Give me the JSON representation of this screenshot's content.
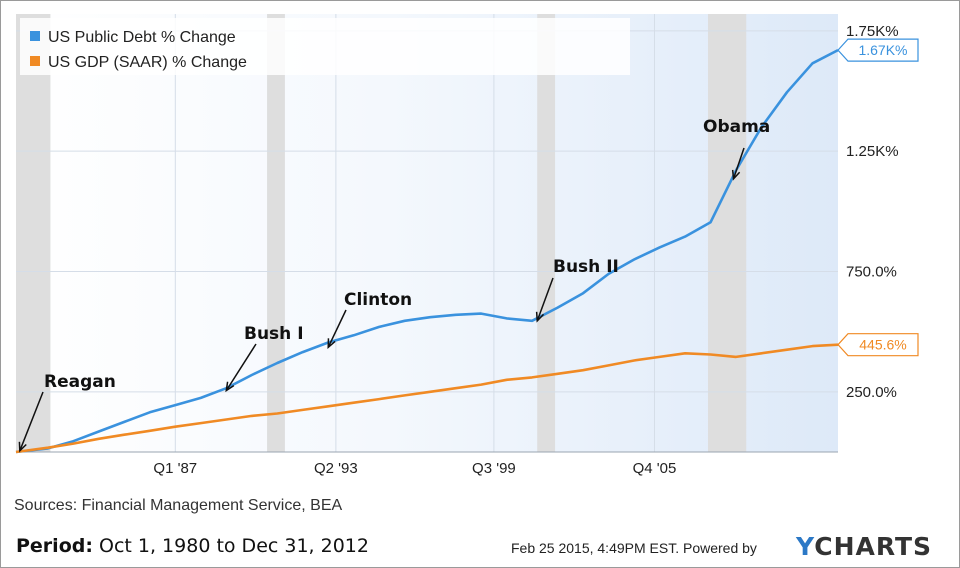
{
  "chart_data": {
    "type": "line",
    "x_labels": [
      "Q1 '87",
      "Q2 '93",
      "Q3 '99",
      "Q4 '05"
    ],
    "y_ticks": [
      "250.0%",
      "750.0%",
      "1.25K%",
      "1.75K%"
    ],
    "y_tick_values": [
      250,
      750,
      1250,
      1750
    ],
    "ylim": [
      0,
      1820
    ],
    "xlim": [
      1980.75,
      2013.0
    ],
    "x_tick_values": [
      1987.0,
      1993.3,
      1999.5,
      2005.8
    ],
    "recessions": [
      [
        1980.75,
        1982.1
      ],
      [
        1990.6,
        1991.3
      ],
      [
        2001.2,
        2001.9
      ],
      [
        2007.9,
        2009.4
      ]
    ],
    "series": [
      {
        "name": "US Public Debt % Change",
        "color": "#3a92de",
        "end_label": "1.67K%",
        "points": [
          [
            1980.75,
            0
          ],
          [
            1982,
            15
          ],
          [
            1983,
            45
          ],
          [
            1984,
            85
          ],
          [
            1985,
            125
          ],
          [
            1986,
            165
          ],
          [
            1987,
            195
          ],
          [
            1988,
            225
          ],
          [
            1989,
            265
          ],
          [
            1990,
            320
          ],
          [
            1991,
            370
          ],
          [
            1992,
            415
          ],
          [
            1993,
            455
          ],
          [
            1994,
            485
          ],
          [
            1995,
            520
          ],
          [
            1996,
            545
          ],
          [
            1997,
            560
          ],
          [
            1998,
            570
          ],
          [
            1999,
            575
          ],
          [
            2000,
            555
          ],
          [
            2001,
            545
          ],
          [
            2002,
            600
          ],
          [
            2003,
            660
          ],
          [
            2004,
            740
          ],
          [
            2005,
            800
          ],
          [
            2006,
            850
          ],
          [
            2007,
            895
          ],
          [
            2008,
            955
          ],
          [
            2009,
            1170
          ],
          [
            2010,
            1350
          ],
          [
            2011,
            1495
          ],
          [
            2012,
            1615
          ],
          [
            2013,
            1670
          ]
        ]
      },
      {
        "name": "US GDP (SAAR) % Change",
        "color": "#f08a24",
        "end_label": "445.6%",
        "points": [
          [
            1980.75,
            0
          ],
          [
            1982,
            18
          ],
          [
            1983,
            35
          ],
          [
            1984,
            55
          ],
          [
            1985,
            72
          ],
          [
            1986,
            88
          ],
          [
            1987,
            105
          ],
          [
            1988,
            120
          ],
          [
            1989,
            135
          ],
          [
            1990,
            150
          ],
          [
            1991,
            160
          ],
          [
            1992,
            175
          ],
          [
            1993,
            190
          ],
          [
            1994,
            205
          ],
          [
            1995,
            220
          ],
          [
            1996,
            235
          ],
          [
            1997,
            250
          ],
          [
            1998,
            265
          ],
          [
            1999,
            280
          ],
          [
            2000,
            300
          ],
          [
            2001,
            310
          ],
          [
            2002,
            325
          ],
          [
            2003,
            340
          ],
          [
            2004,
            360
          ],
          [
            2005,
            380
          ],
          [
            2006,
            395
          ],
          [
            2007,
            410
          ],
          [
            2008,
            405
          ],
          [
            2009,
            395
          ],
          [
            2010,
            410
          ],
          [
            2011,
            425
          ],
          [
            2012,
            440
          ],
          [
            2013,
            446
          ]
        ]
      }
    ],
    "annotations": [
      {
        "text": "Reagan",
        "target": [
          1980.9,
          5
        ]
      },
      {
        "text": "Bush I",
        "target": [
          1989.0,
          255
        ]
      },
      {
        "text": "Clinton",
        "target": [
          1993.0,
          435
        ]
      },
      {
        "text": "Bush II",
        "target": [
          2001.2,
          545
        ]
      },
      {
        "text": "Obama",
        "target": [
          2008.9,
          1135
        ]
      }
    ]
  },
  "footer": {
    "sources": "Sources: Financial Management Service, BEA",
    "period_label": "Period:",
    "period_value": " Oct 1, 1980 to Dec 31, 2012",
    "timestamp": "Feb 25 2015, 4:49PM EST.",
    "powered": "Powered by",
    "brand_y": "Y",
    "brand_rest": "CHARTS"
  }
}
